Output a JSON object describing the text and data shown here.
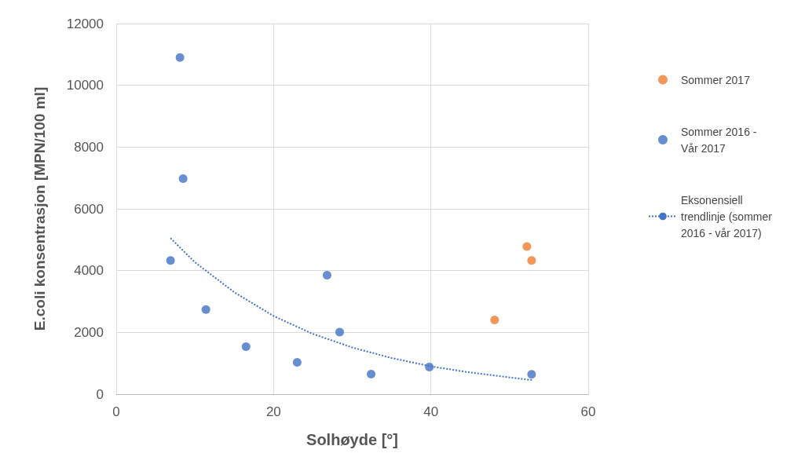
{
  "chart_data": {
    "type": "scatter",
    "xlabel": "Solhøyde [°]",
    "ylabel": "E.coli konsentrasjon [MPN/100 ml]",
    "xlim": [
      0,
      60
    ],
    "xticks": [
      0,
      20,
      40,
      60
    ],
    "ylim": [
      0,
      12000
    ],
    "yticks": [
      0,
      2000,
      4000,
      6000,
      8000,
      10000,
      12000
    ],
    "grid": true,
    "legend": "right",
    "marker": "circle",
    "series": [
      {
        "name": "Sommer 2017",
        "color": "#ed7d31",
        "x": [
          52.2,
          52.8,
          48.1
        ],
        "values": [
          4780,
          4330,
          2400
        ]
      },
      {
        "name": "Sommer 2016 - Vår 2017",
        "color": "#4472c4",
        "x": [
          8.1,
          8.5,
          6.9,
          11.4,
          16.5,
          23.0,
          26.8,
          28.4,
          32.4,
          39.8,
          52.8
        ],
        "values": [
          10900,
          6980,
          4330,
          2740,
          1540,
          1030,
          3850,
          2010,
          650,
          880,
          640
        ]
      },
      {
        "name": "Eksonensiell trendlinje (sommer 2016 - vår 2017)",
        "type": "line",
        "color": "#4472c4",
        "line_style": "dotted",
        "marker": "none",
        "x": [
          6.9,
          10,
          15,
          20,
          25,
          30,
          35,
          40,
          45,
          50,
          53
        ],
        "values": [
          5050,
          4270,
          3300,
          2530,
          1950,
          1510,
          1170,
          900,
          700,
          540,
          450
        ]
      }
    ]
  }
}
